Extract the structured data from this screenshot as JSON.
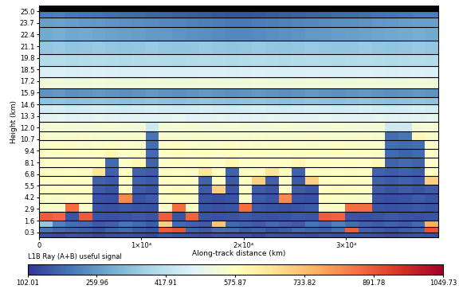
{
  "chart_data": {
    "type": "heatmap",
    "x_label": "Along-track distance (km)",
    "y_label": "Height (km)",
    "xlim": [
      0,
      39000
    ],
    "ylim": [
      -0.3,
      25.6
    ],
    "xticks": [
      0,
      {
        "value": 10000,
        "label": "1×10⁴"
      },
      {
        "value": 20000,
        "label": "2×10⁴"
      },
      {
        "value": 30000,
        "label": "3×10⁴"
      }
    ],
    "yticks": [
      0.3,
      1.6,
      2.9,
      4.2,
      5.5,
      6.8,
      8.1,
      9.4,
      10.7,
      12.0,
      13.3,
      14.6,
      15.9,
      17.2,
      18.5,
      19.8,
      21.1,
      22.4,
      23.7,
      25.0
    ],
    "x_edges": [
      0,
      1300,
      2600,
      3900,
      5200,
      6500,
      7800,
      9100,
      10400,
      11700,
      13000,
      14300,
      15600,
      16900,
      18200,
      19500,
      20800,
      22100,
      23400,
      24700,
      26000,
      27300,
      28600,
      29900,
      31200,
      32500,
      33800,
      35100,
      36400,
      37700,
      39000
    ],
    "y_edges": [
      -0.3,
      0.3,
      0.9,
      1.6,
      2.6,
      3.6,
      4.6,
      5.6,
      6.6,
      7.6,
      8.6,
      9.6,
      10.6,
      11.6,
      12.6,
      13.6,
      14.6,
      15.4,
      16.4,
      17.6,
      18.9,
      20.2,
      21.7,
      23.2,
      24.3,
      25.0,
      25.6
    ],
    "cells": [
      [
        140,
        135,
        150,
        140,
        130,
        145,
        150,
        140,
        135,
        160,
        150,
        140,
        135,
        150,
        145,
        140,
        130,
        150,
        145,
        140,
        135,
        150,
        140,
        145,
        150,
        140,
        135,
        140,
        150,
        145
      ],
      [
        200,
        180,
        170,
        160,
        150,
        170,
        180,
        160,
        150,
        880,
        900,
        170,
        160,
        190,
        180,
        160,
        170,
        150,
        160,
        180,
        170,
        160,
        190,
        880,
        170,
        160,
        150,
        160,
        170,
        900
      ],
      [
        350,
        220,
        190,
        180,
        160,
        170,
        200,
        180,
        160,
        700,
        180,
        170,
        160,
        720,
        180,
        170,
        160,
        180,
        170,
        160,
        200,
        180,
        220,
        190,
        170,
        160,
        170,
        160,
        180,
        760
      ],
      [
        880,
        870,
        150,
        885,
        150,
        145,
        150,
        155,
        150,
        880,
        150,
        875,
        150,
        145,
        150,
        155,
        150,
        145,
        150,
        155,
        150,
        880,
        875,
        150,
        145,
        150,
        155,
        150,
        145,
        150
      ],
      [
        560,
        555,
        860,
        565,
        150,
        145,
        155,
        150,
        145,
        560,
        860,
        565,
        150,
        145,
        150,
        860,
        155,
        150,
        145,
        150,
        155,
        560,
        565,
        860,
        855,
        150,
        145,
        150,
        155,
        150
      ],
      [
        560,
        555,
        565,
        560,
        150,
        140,
        820,
        150,
        160,
        560,
        565,
        560,
        150,
        140,
        150,
        560,
        160,
        150,
        820,
        150,
        140,
        570,
        565,
        560,
        555,
        150,
        140,
        150,
        160,
        150
      ],
      [
        570,
        575,
        565,
        570,
        160,
        150,
        575,
        160,
        150,
        570,
        580,
        575,
        160,
        700,
        150,
        570,
        160,
        150,
        575,
        160,
        150,
        570,
        580,
        575,
        570,
        160,
        150,
        160,
        150,
        160
      ],
      [
        570,
        575,
        570,
        565,
        170,
        160,
        575,
        170,
        160,
        570,
        575,
        570,
        170,
        575,
        160,
        570,
        700,
        170,
        575,
        160,
        700,
        570,
        575,
        570,
        565,
        170,
        160,
        170,
        160,
        700
      ],
      [
        570,
        570,
        575,
        570,
        650,
        170,
        575,
        170,
        160,
        570,
        575,
        570,
        650,
        575,
        170,
        570,
        575,
        650,
        570,
        170,
        575,
        570,
        575,
        570,
        575,
        170,
        160,
        170,
        160,
        575
      ],
      [
        565,
        565,
        570,
        565,
        570,
        180,
        565,
        600,
        170,
        565,
        570,
        565,
        570,
        565,
        600,
        565,
        570,
        565,
        570,
        600,
        565,
        570,
        565,
        570,
        565,
        600,
        170,
        180,
        170,
        565
      ],
      [
        560,
        560,
        565,
        560,
        565,
        600,
        560,
        565,
        180,
        560,
        565,
        560,
        565,
        560,
        565,
        560,
        565,
        560,
        565,
        560,
        565,
        560,
        565,
        560,
        565,
        560,
        180,
        170,
        180,
        560
      ],
      [
        560,
        565,
        560,
        555,
        560,
        565,
        560,
        555,
        190,
        560,
        565,
        560,
        555,
        560,
        565,
        560,
        555,
        560,
        565,
        560,
        555,
        560,
        565,
        560,
        555,
        560,
        190,
        180,
        190,
        560
      ],
      [
        555,
        550,
        555,
        560,
        555,
        550,
        555,
        560,
        200,
        555,
        550,
        555,
        560,
        555,
        550,
        555,
        560,
        555,
        550,
        555,
        560,
        555,
        550,
        555,
        560,
        555,
        190,
        200,
        600,
        555
      ],
      [
        540,
        545,
        540,
        535,
        540,
        545,
        540,
        535,
        450,
        540,
        545,
        540,
        535,
        540,
        545,
        540,
        535,
        540,
        545,
        540,
        535,
        540,
        545,
        540,
        535,
        540,
        450,
        450,
        540,
        545
      ],
      [
        490,
        495,
        485,
        490,
        495,
        490,
        485,
        490,
        480,
        490,
        495,
        485,
        490,
        495,
        490,
        485,
        490,
        495,
        490,
        485,
        490,
        495,
        490,
        485,
        490,
        495,
        490,
        485,
        490,
        495
      ],
      [
        460,
        465,
        455,
        460,
        465,
        460,
        455,
        460,
        465,
        460,
        455,
        460,
        465,
        460,
        455,
        460,
        465,
        460,
        455,
        460,
        465,
        460,
        455,
        460,
        465,
        460,
        455,
        460,
        465,
        460
      ],
      [
        340,
        345,
        335,
        340,
        345,
        340,
        335,
        340,
        345,
        340,
        335,
        340,
        345,
        340,
        335,
        340,
        345,
        340,
        335,
        340,
        345,
        340,
        335,
        340,
        345,
        340,
        335,
        340,
        345,
        340
      ],
      [
        250,
        255,
        245,
        250,
        255,
        250,
        245,
        250,
        255,
        250,
        245,
        250,
        255,
        250,
        245,
        250,
        255,
        250,
        245,
        250,
        255,
        250,
        245,
        250,
        255,
        250,
        245,
        250,
        255,
        250
      ],
      [
        530,
        535,
        525,
        530,
        535,
        530,
        525,
        530,
        535,
        530,
        525,
        530,
        535,
        530,
        525,
        530,
        535,
        530,
        525,
        530,
        535,
        530,
        525,
        530,
        535,
        530,
        525,
        530,
        535,
        530
      ],
      [
        470,
        475,
        465,
        470,
        475,
        470,
        465,
        470,
        475,
        470,
        465,
        470,
        475,
        470,
        465,
        470,
        475,
        470,
        465,
        470,
        475,
        470,
        465,
        470,
        475,
        470,
        465,
        470,
        475,
        470
      ],
      [
        400,
        405,
        395,
        400,
        405,
        400,
        395,
        400,
        405,
        400,
        395,
        400,
        405,
        400,
        395,
        400,
        405,
        400,
        395,
        400,
        405,
        400,
        395,
        400,
        405,
        400,
        395,
        400,
        405,
        400
      ],
      [
        350,
        355,
        345,
        350,
        355,
        350,
        345,
        350,
        355,
        350,
        345,
        350,
        355,
        350,
        345,
        350,
        355,
        350,
        345,
        350,
        355,
        350,
        345,
        350,
        355,
        350,
        345,
        350,
        355,
        350
      ],
      [
        290,
        295,
        285,
        290,
        280,
        275,
        270,
        265,
        260,
        255,
        250,
        245,
        240,
        235,
        230,
        230,
        235,
        240,
        245,
        250,
        255,
        260,
        265,
        270,
        275,
        280,
        285,
        290,
        295,
        290
      ],
      [
        270,
        275,
        265,
        260,
        255,
        250,
        245,
        240,
        235,
        230,
        225,
        220,
        215,
        210,
        205,
        205,
        210,
        215,
        220,
        225,
        230,
        235,
        240,
        245,
        250,
        255,
        260,
        265,
        270,
        270
      ],
      [
        210,
        215,
        205,
        200,
        195,
        190,
        185,
        180,
        175,
        170,
        165,
        160,
        155,
        150,
        145,
        145,
        150,
        155,
        160,
        165,
        170,
        175,
        180,
        185,
        190,
        195,
        200,
        205,
        210,
        210
      ],
      [
        null,
        null,
        null,
        null,
        null,
        null,
        null,
        null,
        null,
        null,
        null,
        null,
        null,
        null,
        null,
        null,
        null,
        null,
        null,
        null,
        null,
        null,
        null,
        null,
        null,
        null,
        null,
        null,
        null,
        null
      ]
    ],
    "colorbar": {
      "label": "L1B Ray (A+B) useful signal",
      "range": [
        102.01,
        1049.73
      ],
      "ticks": [
        102.01,
        259.96,
        417.91,
        575.87,
        733.82,
        891.78,
        1049.73
      ]
    }
  }
}
